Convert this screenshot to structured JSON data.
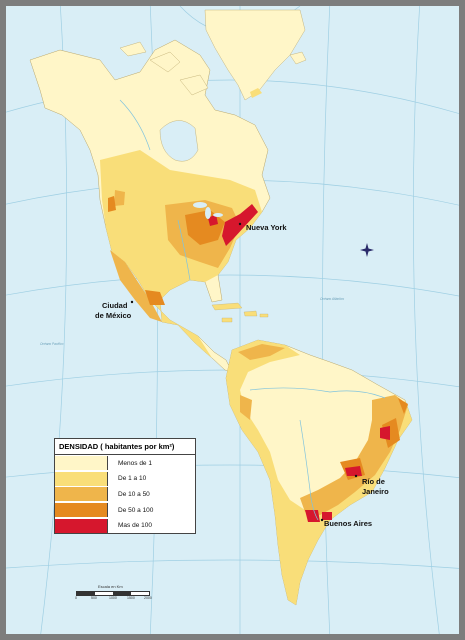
{
  "map": {
    "cities": [
      {
        "name": "Nueva York"
      },
      {
        "name": "Ciudad\nde México",
        "line1": "Ciudad",
        "line2": "de México"
      },
      {
        "name": "Río de\nJaneiro",
        "line1": "Río de",
        "line2": "Janeiro"
      },
      {
        "name": "Buenos Aires"
      }
    ],
    "colors": {
      "water": "#d9eef6",
      "graticule": "#9fcfe3",
      "river": "#7fc3de",
      "frame": "#7d7d7d"
    }
  },
  "legend": {
    "title": "DENSIDAD ( habitantes por km²)",
    "items": [
      {
        "label": "Menos de 1",
        "color": "#fff6c8"
      },
      {
        "label": "De 1 a 10",
        "color": "#f9de79"
      },
      {
        "label": "De 10 a 50",
        "color": "#efb54b"
      },
      {
        "label": "De 50 a 100",
        "color": "#e58a20"
      },
      {
        "label": "Mas de 100",
        "color": "#d6172d"
      }
    ]
  },
  "scale": {
    "title": "Escala en Km",
    "ticks": [
      "0",
      "500",
      "1000",
      "1500",
      "2000"
    ]
  }
}
